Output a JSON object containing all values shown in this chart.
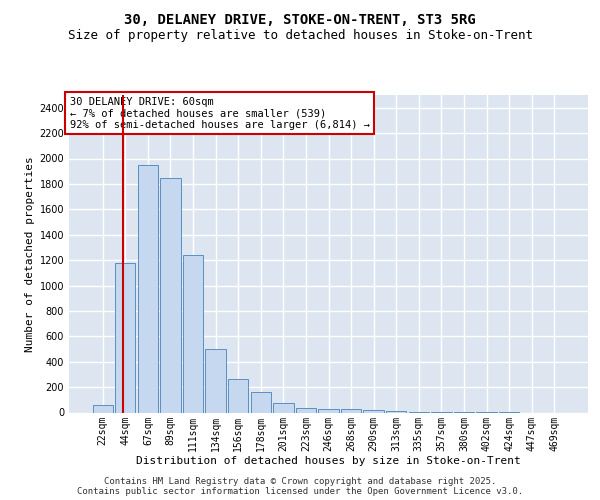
{
  "title_line1": "30, DELANEY DRIVE, STOKE-ON-TRENT, ST3 5RG",
  "title_line2": "Size of property relative to detached houses in Stoke-on-Trent",
  "xlabel": "Distribution of detached houses by size in Stoke-on-Trent",
  "ylabel": "Number of detached properties",
  "categories": [
    "22sqm",
    "44sqm",
    "67sqm",
    "89sqm",
    "111sqm",
    "134sqm",
    "156sqm",
    "178sqm",
    "201sqm",
    "223sqm",
    "246sqm",
    "268sqm",
    "290sqm",
    "313sqm",
    "335sqm",
    "357sqm",
    "380sqm",
    "402sqm",
    "424sqm",
    "447sqm",
    "469sqm"
  ],
  "values": [
    60,
    1175,
    1950,
    1850,
    1240,
    500,
    265,
    160,
    75,
    35,
    30,
    25,
    20,
    10,
    5,
    3,
    2,
    1,
    1,
    0,
    0
  ],
  "bar_color": "#c5d8f0",
  "bar_edge_color": "#5a8fc0",
  "vline_color": "#cc0000",
  "vline_bar_index": 1,
  "annotation_title": "30 DELANEY DRIVE: 60sqm",
  "annotation_line2": "← 7% of detached houses are smaller (539)",
  "annotation_line3": "92% of semi-detached houses are larger (6,814) →",
  "annotation_box_edgecolor": "#cc0000",
  "ylim_max": 2500,
  "ytick_step": 200,
  "bg_color": "#dde5f0",
  "grid_color": "#ffffff",
  "footer_line1": "Contains HM Land Registry data © Crown copyright and database right 2025.",
  "footer_line2": "Contains public sector information licensed under the Open Government Licence v3.0.",
  "title_fontsize": 10,
  "subtitle_fontsize": 9,
  "axis_label_fontsize": 8,
  "tick_fontsize": 7,
  "annotation_fontsize": 7.5,
  "footer_fontsize": 6.5
}
